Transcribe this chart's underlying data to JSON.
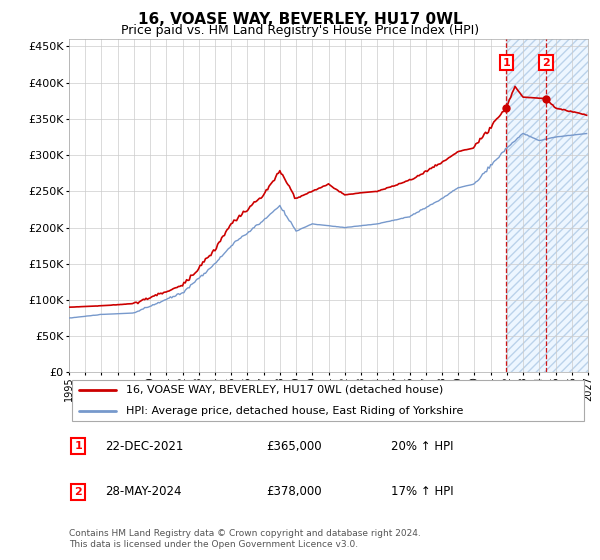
{
  "title": "16, VOASE WAY, BEVERLEY, HU17 0WL",
  "subtitle": "Price paid vs. HM Land Registry's House Price Index (HPI)",
  "ylim": [
    0,
    460000
  ],
  "yticks": [
    0,
    50000,
    100000,
    150000,
    200000,
    250000,
    300000,
    350000,
    400000,
    450000
  ],
  "xlim_start": 1995,
  "xlim_end": 2027,
  "price_color": "#cc0000",
  "hpi_color": "#7799cc",
  "shade_color": "#ddeeff",
  "transaction1_year": 2021.97,
  "transaction1_price": 365000,
  "transaction2_year": 2024.41,
  "transaction2_price": 378000,
  "legend1": "16, VOASE WAY, BEVERLEY, HU17 0WL (detached house)",
  "legend2": "HPI: Average price, detached house, East Riding of Yorkshire",
  "footer": "Contains HM Land Registry data © Crown copyright and database right 2024.\nThis data is licensed under the Open Government Licence v3.0.",
  "annotation1_date": "22-DEC-2021",
  "annotation1_price": "£365,000",
  "annotation1_pct": "20% ↑ HPI",
  "annotation2_date": "28-MAY-2024",
  "annotation2_price": "£378,000",
  "annotation2_pct": "17% ↑ HPI"
}
